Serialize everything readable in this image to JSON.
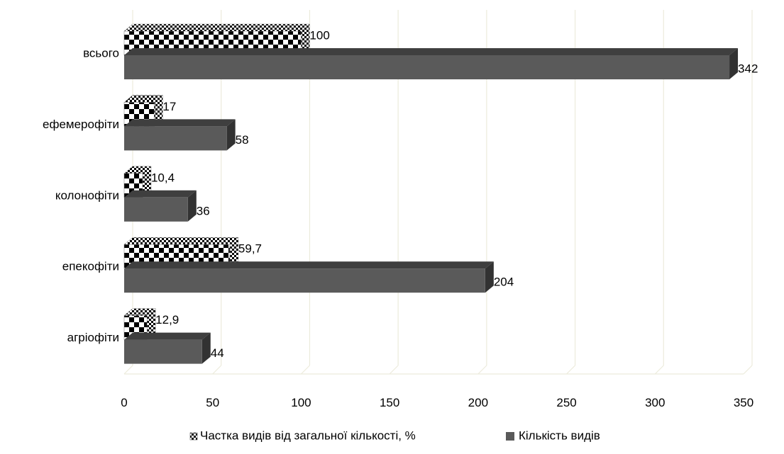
{
  "chart_data": {
    "type": "bar",
    "orientation": "horizontal",
    "style": "3d",
    "categories": [
      "агріофіти",
      "епекофіти",
      "колонофіти",
      "ефемерофіти",
      "всього"
    ],
    "series": [
      {
        "name": "Частка видів від загальної кількості, %",
        "pattern": "checkerboard",
        "values": [
          12.9,
          59.7,
          10.4,
          17,
          100
        ],
        "value_labels": [
          "12,9",
          "59,7",
          "10,4",
          "17",
          "100"
        ]
      },
      {
        "name": "Кількість видів",
        "color": "#5a5a5a",
        "values": [
          44,
          204,
          36,
          58,
          342
        ],
        "value_labels": [
          "44",
          "204",
          "36",
          "58",
          "342"
        ]
      }
    ],
    "x_ticks": [
      0,
      50,
      100,
      150,
      200,
      250,
      300,
      350
    ],
    "xlim": [
      0,
      350
    ],
    "title": "",
    "xlabel": "",
    "ylabel": "",
    "grid": "vertical",
    "legend_position": "bottom"
  }
}
